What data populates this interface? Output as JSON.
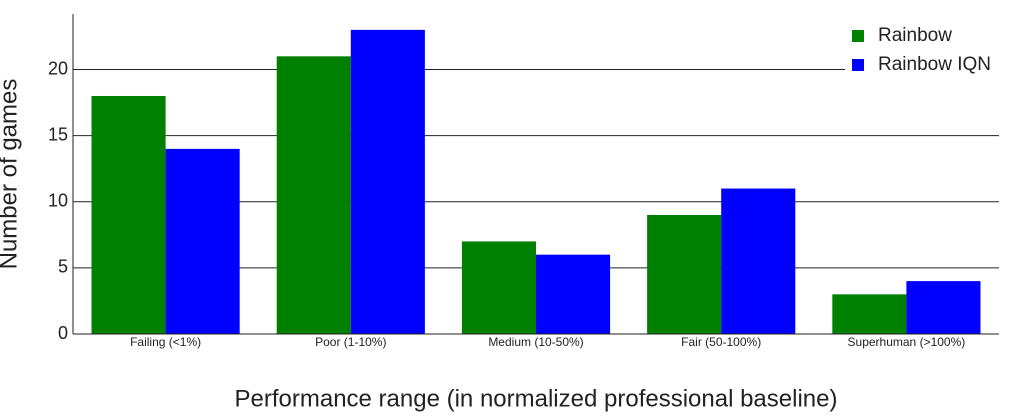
{
  "chart_data": {
    "type": "grouped-bar",
    "x_label": "Performance range (in normalized professional baseline)",
    "y_label": "Number of games",
    "categories": [
      "Failing (<1%)",
      "Poor (1-10%)",
      "Medium (10-50%)",
      "Fair (50-100%)",
      "Superhuman (>100%)"
    ],
    "series": [
      {
        "name": "Rainbow",
        "color": "#008000",
        "values": [
          18,
          21,
          7,
          9,
          3
        ]
      },
      {
        "name": "Rainbow IQN",
        "color": "#0000ff",
        "values": [
          14,
          23,
          6,
          11,
          4
        ]
      }
    ],
    "ylim": [
      0,
      24.2
    ],
    "yticks": [
      0,
      5,
      10,
      15,
      20
    ],
    "grid": true,
    "legend": "top-right"
  }
}
